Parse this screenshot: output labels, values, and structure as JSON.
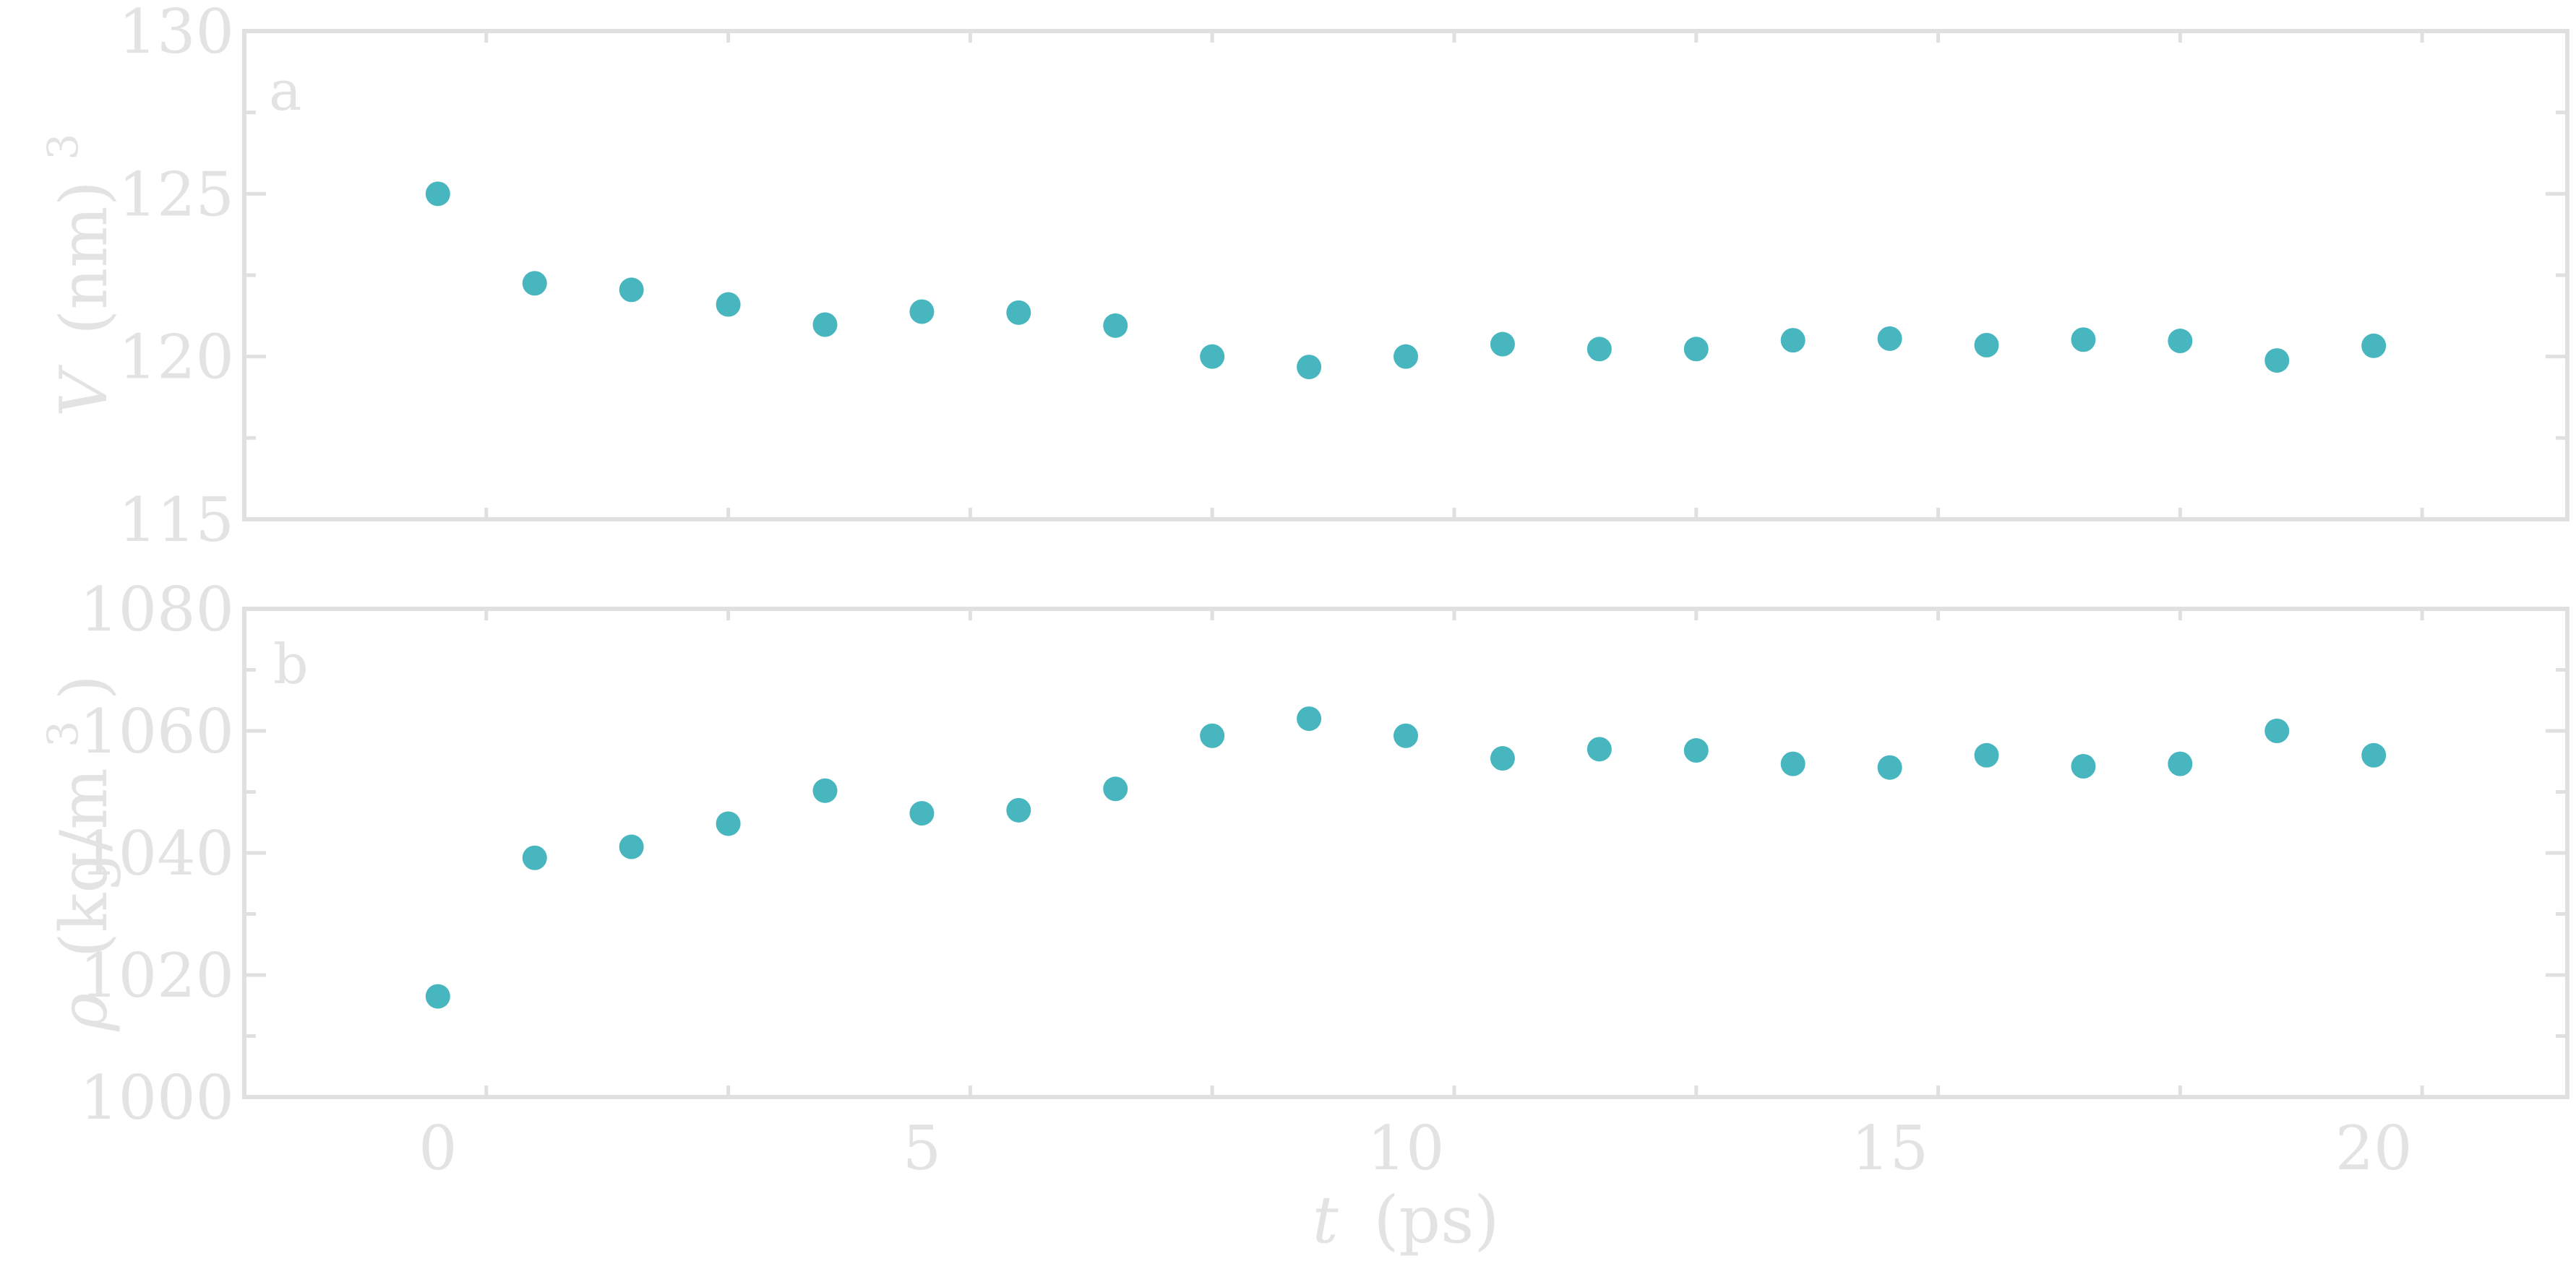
{
  "chart_data": [
    {
      "type": "scatter",
      "panel": "a",
      "ylabel": "V (nm)3",
      "ylabel_parts": {
        "symbol": "V",
        "unit": "(nm)",
        "exponent": "3"
      },
      "xlabel": "",
      "xlim": [
        -2,
        22
      ],
      "ylim": [
        115,
        130
      ],
      "yticks": [
        115,
        120,
        125,
        130
      ],
      "xticks": [
        0,
        5,
        10,
        15,
        20
      ],
      "x": [
        0,
        1,
        2,
        3,
        4,
        5,
        6,
        7,
        8,
        9,
        10,
        11,
        12,
        13,
        14,
        15,
        16,
        17,
        18,
        19,
        20
      ],
      "y": [
        125.0,
        122.25,
        122.05,
        121.6,
        120.98,
        121.38,
        121.35,
        120.95,
        120.0,
        119.68,
        120.0,
        120.38,
        120.23,
        120.23,
        120.5,
        120.55,
        120.35,
        120.52,
        120.48,
        119.88,
        120.33
      ],
      "color": "#47b6bf",
      "grid": false,
      "legend": "none"
    },
    {
      "type": "scatter",
      "panel": "b",
      "ylabel": "ρ (kg/m3)",
      "ylabel_parts": {
        "symbol": "ρ",
        "unit_before": "(kg/m",
        "exponent": "3",
        "unit_after": ")"
      },
      "xlabel": "t (ps)",
      "xlabel_parts": {
        "symbol": "t",
        "unit": "(ps)"
      },
      "xlim": [
        -2,
        22
      ],
      "ylim": [
        1000,
        1080
      ],
      "yticks": [
        1000,
        1020,
        1040,
        1060,
        1080
      ],
      "xticks": [
        0,
        5,
        10,
        15,
        20
      ],
      "x": [
        0,
        1,
        2,
        3,
        4,
        5,
        6,
        7,
        8,
        9,
        10,
        11,
        12,
        13,
        14,
        15,
        16,
        17,
        18,
        19,
        20
      ],
      "y": [
        1016.5,
        1039.2,
        1041.0,
        1044.8,
        1050.2,
        1046.5,
        1047.0,
        1050.5,
        1059.2,
        1062.0,
        1059.2,
        1055.5,
        1057.0,
        1056.8,
        1054.6,
        1054.0,
        1056.0,
        1054.2,
        1054.6,
        1060.0,
        1056.0
      ],
      "color": "#47b6bf",
      "grid": false,
      "legend": "none"
    }
  ]
}
